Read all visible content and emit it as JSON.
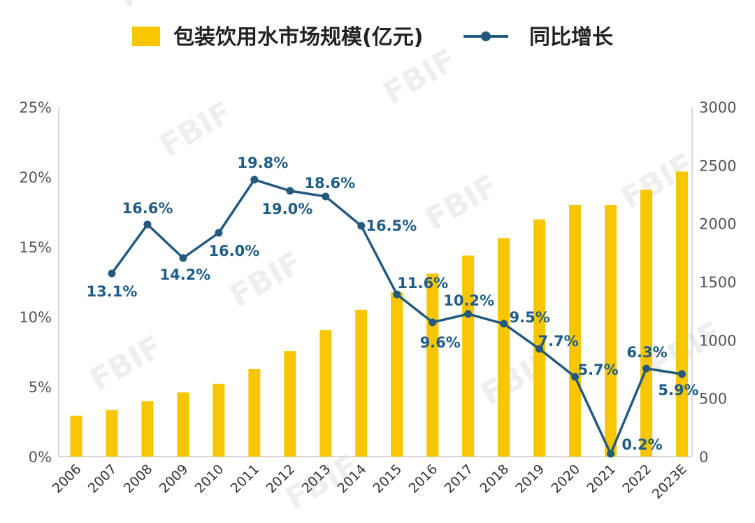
{
  "chart_data": {
    "type": "bar+line",
    "categories": [
      "2006",
      "2007",
      "2008",
      "2009",
      "2010",
      "2011",
      "2012",
      "2013",
      "2014",
      "2015",
      "2016",
      "2017",
      "2018",
      "2019",
      "2020",
      "2021",
      "2022",
      "2023E"
    ],
    "series": [
      {
        "name": "包装饮用水市场规模(亿元)",
        "type": "bar",
        "axis": "right",
        "color": "#f7c600",
        "values": [
          350,
          400,
          475,
          550,
          625,
          750,
          905,
          1085,
          1260,
          1410,
          1570,
          1725,
          1875,
          2035,
          2160,
          2160,
          2290,
          2445
        ]
      },
      {
        "name": "同比增长",
        "type": "line",
        "axis": "left",
        "color": "#24597f",
        "values": [
          null,
          13.1,
          16.6,
          14.2,
          16.0,
          19.8,
          19.0,
          18.6,
          16.5,
          11.6,
          9.6,
          10.2,
          9.5,
          7.7,
          5.7,
          0.2,
          6.3,
          5.9
        ],
        "labels": [
          "",
          "13.1%",
          "16.6%",
          "14.2%",
          "16.0%",
          "19.8%",
          "19.0%",
          "18.6%",
          "16.5%",
          "11.6%",
          "9.6%",
          "10.2%",
          "9.5%",
          "7.7%",
          "5.7%",
          "0.2%",
          "6.3%",
          "5.9%"
        ]
      }
    ],
    "y_left": {
      "ticks": [
        "0%",
        "5%",
        "10%",
        "15%",
        "20%",
        "25%"
      ],
      "min": 0,
      "max": 25
    },
    "y_right": {
      "ticks": [
        "0",
        "500",
        "1000",
        "1500",
        "2000",
        "2500",
        "3000"
      ],
      "min": 0,
      "max": 3000
    },
    "legend": "top-center",
    "grid": false
  },
  "watermark": "FBIF"
}
